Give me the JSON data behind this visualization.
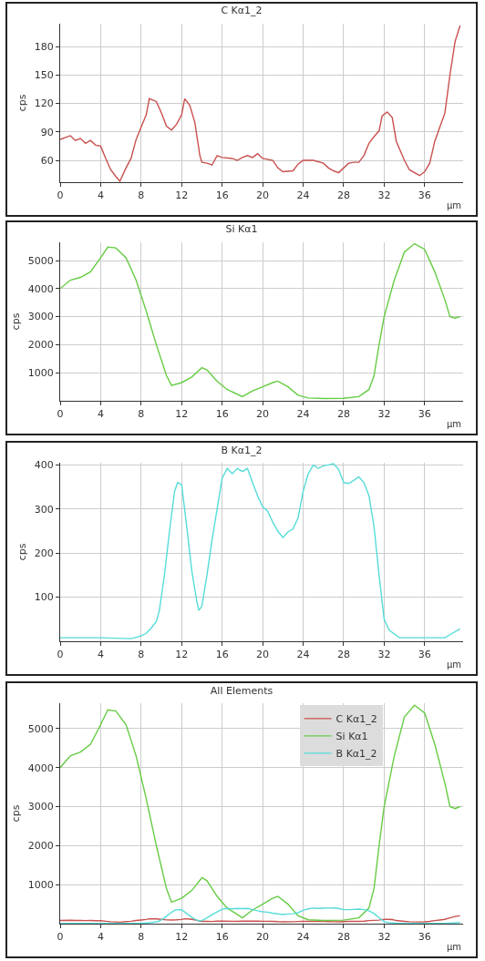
{
  "chart_data": [
    {
      "type": "line",
      "title": "C Kα1_2",
      "xlabel": "µm",
      "ylabel": "cps",
      "xlim": [
        0,
        39.8
      ],
      "ylim": [
        37,
        204
      ],
      "xticks": [
        0,
        4,
        8,
        12,
        16,
        20,
        24,
        28,
        32,
        36
      ],
      "yticks": [
        60,
        90,
        120,
        150,
        180
      ],
      "grid": true,
      "series": [
        {
          "color": "#c8504e",
          "x": [
            0,
            1,
            1.5,
            2,
            2.5,
            3,
            3.5,
            4,
            4.5,
            5,
            5.5,
            5.9,
            6.5,
            7,
            7.5,
            8,
            8.5,
            8.8,
            9.5,
            10,
            10.5,
            11,
            11.5,
            12,
            12.3,
            12.8,
            13.3,
            13.8,
            14,
            14.5,
            15,
            15.5,
            16,
            17,
            17.5,
            18,
            18.5,
            19,
            19.5,
            20,
            21,
            21.5,
            22,
            23,
            23.5,
            24,
            25,
            26,
            26.5,
            27,
            27.5,
            28,
            28.5,
            29,
            29.5,
            30,
            30.5,
            31,
            31.5,
            31.8,
            32.3,
            32.8,
            33.2,
            34,
            34.5,
            35.5,
            36,
            36.5,
            37,
            37.5,
            38,
            38.5,
            39,
            39.5
          ],
          "values": [
            82,
            86,
            81,
            83,
            78,
            81,
            76,
            75,
            62,
            50,
            43,
            38,
            52,
            62,
            82,
            95,
            108,
            125,
            122,
            110,
            96,
            92,
            98,
            108,
            125,
            118,
            100,
            65,
            58,
            57,
            55,
            65,
            63,
            62,
            60,
            63,
            65,
            63,
            67,
            62,
            60,
            52,
            48,
            49,
            56,
            60,
            60,
            57,
            52,
            49,
            47,
            52,
            57,
            58,
            58,
            65,
            78,
            85,
            91,
            107,
            111,
            105,
            80,
            60,
            50,
            44,
            48,
            57,
            80,
            95,
            110,
            150,
            185,
            202
          ]
        }
      ]
    },
    {
      "type": "line",
      "title": "Si Kα1",
      "xlabel": "µm",
      "ylabel": "cps",
      "xlim": [
        0,
        39.8
      ],
      "ylim": [
        0,
        5650
      ],
      "xticks": [
        0,
        4,
        8,
        12,
        16,
        20,
        24,
        28,
        32,
        36
      ],
      "yticks": [
        1000,
        2000,
        3000,
        4000,
        5000
      ],
      "grid": true,
      "series": [
        {
          "color": "#66cc44",
          "x": [
            0,
            1,
            2,
            3,
            4,
            4.7,
            5.5,
            6.5,
            7.5,
            8.5,
            9.5,
            10.5,
            11,
            12,
            13,
            14,
            14.5,
            15.5,
            16.5,
            18,
            19,
            20,
            21,
            21.5,
            22.5,
            23.5,
            24.5,
            26,
            28,
            29.5,
            30.5,
            31,
            31.5,
            32,
            33,
            34,
            35,
            36,
            37,
            38,
            38.5,
            39,
            39.5
          ],
          "values": [
            4000,
            4300,
            4400,
            4600,
            5100,
            5480,
            5450,
            5100,
            4300,
            3200,
            2000,
            900,
            550,
            650,
            850,
            1180,
            1100,
            700,
            400,
            150,
            350,
            500,
            650,
            700,
            500,
            200,
            100,
            80,
            90,
            150,
            400,
            900,
            2000,
            3000,
            4300,
            5300,
            5600,
            5400,
            4600,
            3600,
            3000,
            2950,
            3000
          ]
        }
      ]
    },
    {
      "type": "line",
      "title": "B Kα1_2",
      "xlabel": "µm",
      "ylabel": "cps",
      "xlim": [
        0,
        39.8
      ],
      "ylim": [
        0,
        405
      ],
      "xticks": [
        0,
        4,
        8,
        12,
        16,
        20,
        24,
        28,
        32,
        36
      ],
      "yticks": [
        100,
        200,
        300,
        400
      ],
      "grid": true,
      "series": [
        {
          "color": "#55dcd8",
          "x": [
            0,
            4,
            7,
            8,
            8.5,
            9,
            9.5,
            9.8,
            10.3,
            10.8,
            11.3,
            11.6,
            12,
            12.5,
            13,
            13.5,
            13.7,
            14,
            14.5,
            15,
            15.5,
            16,
            16.5,
            17,
            17.5,
            18,
            18.5,
            19,
            19.5,
            20,
            20.5,
            21,
            21.5,
            22,
            22.5,
            23,
            23.5,
            24,
            24.5,
            25,
            25.5,
            26,
            26.5,
            27,
            27.5,
            28,
            28.5,
            29,
            29.5,
            30,
            30.5,
            31,
            31.5,
            32,
            32.5,
            33.5,
            35,
            37,
            38,
            38.5,
            39.5
          ],
          "values": [
            8,
            8,
            6,
            12,
            18,
            30,
            45,
            70,
            150,
            250,
            340,
            360,
            355,
            260,
            160,
            90,
            70,
            80,
            150,
            230,
            300,
            370,
            392,
            380,
            392,
            385,
            392,
            360,
            330,
            305,
            295,
            270,
            250,
            235,
            248,
            255,
            280,
            340,
            380,
            400,
            392,
            398,
            400,
            403,
            390,
            360,
            358,
            365,
            373,
            360,
            330,
            260,
            150,
            50,
            25,
            8,
            8,
            8,
            8,
            15,
            28
          ]
        }
      ]
    },
    {
      "type": "line",
      "title": "All Elements",
      "xlabel": "µm",
      "ylabel": "cps",
      "xlim": [
        0,
        39.8
      ],
      "ylim": [
        0,
        5650
      ],
      "xticks": [
        0,
        4,
        8,
        12,
        16,
        20,
        24,
        28,
        32,
        36
      ],
      "yticks": [
        1000,
        2000,
        3000,
        4000,
        5000
      ],
      "grid": true,
      "legend": "top right",
      "series": [
        {
          "name": "C Kα1_2",
          "color": "#c8504e",
          "x": [
            0,
            1,
            1.5,
            2,
            2.5,
            3,
            3.5,
            4,
            4.5,
            5,
            5.5,
            5.9,
            6.5,
            7,
            7.5,
            8,
            8.5,
            8.8,
            9.5,
            10,
            10.5,
            11,
            11.5,
            12,
            12.3,
            12.8,
            13.3,
            13.8,
            14,
            14.5,
            15,
            15.5,
            16,
            17,
            17.5,
            18,
            18.5,
            19,
            19.5,
            20,
            21,
            21.5,
            22,
            23,
            23.5,
            24,
            25,
            26,
            26.5,
            27,
            27.5,
            28,
            28.5,
            29,
            29.5,
            30,
            30.5,
            31,
            31.5,
            31.8,
            32.3,
            32.8,
            33.2,
            34,
            34.5,
            35.5,
            36,
            36.5,
            37,
            37.5,
            38,
            38.5,
            39,
            39.5
          ],
          "values": [
            82,
            86,
            81,
            83,
            78,
            81,
            76,
            75,
            62,
            50,
            43,
            38,
            52,
            62,
            82,
            95,
            108,
            125,
            122,
            110,
            96,
            92,
            98,
            108,
            125,
            118,
            100,
            65,
            58,
            57,
            55,
            65,
            63,
            62,
            60,
            63,
            65,
            63,
            67,
            62,
            60,
            52,
            48,
            49,
            56,
            60,
            60,
            57,
            52,
            49,
            47,
            52,
            57,
            58,
            58,
            65,
            78,
            85,
            91,
            107,
            111,
            105,
            80,
            60,
            50,
            44,
            48,
            57,
            80,
            95,
            110,
            150,
            185,
            202
          ]
        },
        {
          "name": "Si Kα1",
          "color": "#66cc44",
          "x": [
            0,
            1,
            2,
            3,
            4,
            4.7,
            5.5,
            6.5,
            7.5,
            8.5,
            9.5,
            10.5,
            11,
            12,
            13,
            14,
            14.5,
            15.5,
            16.5,
            18,
            19,
            20,
            21,
            21.5,
            22.5,
            23.5,
            24.5,
            26,
            28,
            29.5,
            30.5,
            31,
            31.5,
            32,
            33,
            34,
            35,
            36,
            37,
            38,
            38.5,
            39,
            39.5
          ],
          "values": [
            4000,
            4300,
            4400,
            4600,
            5100,
            5480,
            5450,
            5100,
            4300,
            3200,
            2000,
            900,
            550,
            650,
            850,
            1180,
            1100,
            700,
            400,
            150,
            350,
            500,
            650,
            700,
            500,
            200,
            100,
            80,
            90,
            150,
            400,
            900,
            2000,
            3000,
            4300,
            5300,
            5600,
            5400,
            4600,
            3600,
            3000,
            2950,
            3000
          ]
        },
        {
          "name": "B Kα1_2",
          "color": "#55dcd8",
          "x": [
            0,
            4,
            7,
            8,
            8.5,
            9,
            9.5,
            9.8,
            10.3,
            10.8,
            11.3,
            11.6,
            12,
            12.5,
            13,
            13.5,
            13.7,
            14,
            14.5,
            15,
            15.5,
            16,
            16.5,
            17,
            17.5,
            18,
            18.5,
            19,
            19.5,
            20,
            20.5,
            21,
            21.5,
            22,
            22.5,
            23,
            23.5,
            24,
            24.5,
            25,
            25.5,
            26,
            26.5,
            27,
            27.5,
            28,
            28.5,
            29,
            29.5,
            30,
            30.5,
            31,
            31.5,
            32,
            32.5,
            33.5,
            35,
            37,
            38,
            38.5,
            39.5
          ],
          "values": [
            8,
            8,
            6,
            12,
            18,
            30,
            45,
            70,
            150,
            250,
            340,
            360,
            355,
            260,
            160,
            90,
            70,
            80,
            150,
            230,
            300,
            370,
            392,
            380,
            392,
            385,
            392,
            360,
            330,
            305,
            295,
            270,
            250,
            235,
            248,
            255,
            280,
            340,
            380,
            400,
            392,
            398,
            400,
            403,
            390,
            360,
            358,
            365,
            373,
            360,
            330,
            260,
            150,
            50,
            25,
            8,
            8,
            8,
            8,
            15,
            28
          ]
        }
      ]
    }
  ]
}
